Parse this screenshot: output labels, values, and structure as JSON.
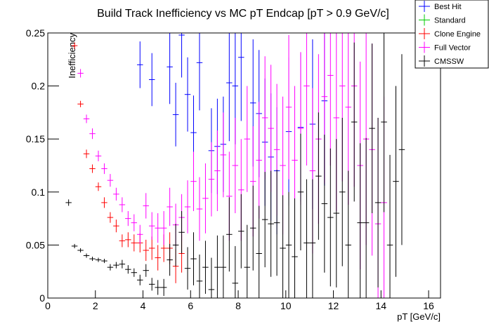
{
  "chart_data": {
    "type": "errorbar",
    "title": "Build Track Inefficiency vs MC pT Endcap [pT > 0.9 GeV/c]",
    "x_label": "pT [GeV/c]",
    "y_label": "Inefficiency",
    "xlim": [
      0,
      16.5
    ],
    "ylim": [
      0,
      0.25
    ],
    "xticks": [
      0,
      2,
      4,
      6,
      8,
      10,
      12,
      14,
      16
    ],
    "yticks": [
      0,
      0.05,
      0.1,
      0.15,
      0.2,
      0.25
    ],
    "legend": "top-right",
    "series": [
      {
        "name": "Best Hit",
        "color": "#0000ff",
        "x": [
          3.875,
          4.375,
          5.125,
          5.375,
          5.625,
          5.875,
          6.125,
          6.375,
          6.875,
          7.125,
          7.375,
          7.625,
          7.875,
          8.125,
          8.625,
          8.875,
          9.125,
          9.375,
          9.625,
          10.125,
          10.625,
          11.125,
          11.625
        ],
        "values": [
          0.22,
          0.206,
          0.218,
          0.173,
          0.248,
          0.192,
          0.156,
          0.222,
          0.139,
          0.143,
          0.145,
          0.203,
          0.2,
          0.227,
          0.184,
          0.174,
          0.147,
          0.133,
          0.12,
          0.157,
          0.161,
          0.164,
          0.186
        ],
        "errors": [
          0.022,
          0.025,
          0.035,
          0.03,
          0.04,
          0.035,
          0.035,
          0.045,
          0.04,
          0.045,
          0.045,
          0.055,
          0.055,
          0.06,
          0.06,
          0.06,
          0.06,
          0.06,
          0.06,
          0.07,
          0.07,
          0.08,
          0.08
        ]
      },
      {
        "name": "Standard",
        "color": "#00cc00",
        "x": [],
        "values": [],
        "errors": []
      },
      {
        "name": "Clone Engine",
        "color": "#ff0000",
        "x": [
          1.125,
          1.375,
          1.625,
          1.875,
          2.125,
          2.375,
          2.625,
          2.875,
          3.125,
          3.375,
          3.625,
          3.875,
          4.125,
          4.375,
          4.625,
          4.875,
          5.125,
          5.375,
          5.625
        ],
        "values": [
          0.238,
          0.183,
          0.136,
          0.122,
          0.105,
          0.09,
          0.076,
          0.068,
          0.054,
          0.055,
          0.052,
          0.052,
          0.045,
          0.047,
          0.038,
          0.047,
          0.047,
          0.03,
          0.042
        ],
        "errors": [
          0.003,
          0.003,
          0.004,
          0.004,
          0.004,
          0.005,
          0.005,
          0.006,
          0.006,
          0.007,
          0.008,
          0.009,
          0.01,
          0.011,
          0.012,
          0.013,
          0.015,
          0.016,
          0.018
        ]
      },
      {
        "name": "Full Vector",
        "color": "#ff00ff",
        "x": [
          1.375,
          1.625,
          1.875,
          2.125,
          2.375,
          2.625,
          2.875,
          3.125,
          3.375,
          3.625,
          3.875,
          4.125,
          4.375,
          4.625,
          4.875,
          5.125,
          5.375,
          5.625,
          5.875,
          6.125,
          6.375,
          6.625,
          6.875,
          7.125,
          7.375,
          7.625,
          7.875,
          8.125,
          8.375,
          8.625,
          8.875,
          9.125,
          9.375,
          9.625,
          9.875,
          10.125,
          10.375,
          10.625,
          10.875,
          11.125,
          11.375,
          11.625,
          11.875,
          12.125,
          12.375,
          12.625,
          12.875,
          13.125,
          13.375,
          13.625,
          13.875,
          14.125
        ],
        "values": [
          0.212,
          0.169,
          0.155,
          0.134,
          0.122,
          0.111,
          0.098,
          0.088,
          0.075,
          0.071,
          0.06,
          0.087,
          0.068,
          0.066,
          0.066,
          0.086,
          0.069,
          0.076,
          0.086,
          0.11,
          0.084,
          0.094,
          0.112,
          0.12,
          0.135,
          0.096,
          0.125,
          0.102,
          0.15,
          0.11,
          0.13,
          0.17,
          0.16,
          0.14,
          0.125,
          0.18,
          0.13,
          0.16,
          0.2,
          0.12,
          0.15,
          0.19,
          0.21,
          0.17,
          0.2,
          0.18,
          0.2,
          0.125,
          0.15,
          0.14,
          0.07,
          0.09
        ],
        "errors": [
          0.004,
          0.004,
          0.005,
          0.005,
          0.005,
          0.006,
          0.006,
          0.007,
          0.007,
          0.008,
          0.009,
          0.012,
          0.013,
          0.014,
          0.016,
          0.018,
          0.02,
          0.022,
          0.025,
          0.028,
          0.03,
          0.033,
          0.035,
          0.038,
          0.04,
          0.042,
          0.045,
          0.048,
          0.05,
          0.052,
          0.055,
          0.058,
          0.06,
          0.062,
          0.065,
          0.068,
          0.07,
          0.072,
          0.075,
          0.078,
          0.08,
          0.082,
          0.085,
          0.088,
          0.09,
          0.092,
          0.095,
          0.098,
          0.1,
          0.1,
          0.1,
          0.1
        ]
      },
      {
        "name": "CMSSW",
        "color": "#000000",
        "x": [
          0.875,
          1.125,
          1.375,
          1.625,
          1.875,
          2.125,
          2.375,
          2.625,
          2.875,
          3.125,
          3.375,
          3.625,
          3.875,
          4.125,
          4.375,
          4.625,
          4.875,
          5.125,
          5.375,
          5.625,
          5.875,
          6.125,
          6.375,
          6.625,
          6.875,
          7.125,
          7.375,
          7.625,
          7.875,
          8.125,
          8.375,
          8.625,
          8.875,
          9.125,
          9.375,
          9.625,
          9.875,
          10.125,
          10.375,
          10.625,
          10.875,
          11.125,
          11.375,
          11.625,
          11.875,
          12.125,
          12.375,
          12.625,
          12.875,
          13.125,
          13.375,
          13.625,
          13.875,
          14.125,
          14.375,
          14.625,
          14.875
        ],
        "values": [
          0.09,
          0.049,
          0.045,
          0.04,
          0.037,
          0.036,
          0.035,
          0.029,
          0.031,
          0.032,
          0.027,
          0.024,
          0.017,
          0.026,
          0.013,
          0.01,
          0.01,
          0.036,
          0.05,
          0.062,
          0.028,
          0.037,
          0.016,
          0.029,
          0.008,
          0.029,
          0.029,
          0.06,
          0.014,
          0.063,
          0.029,
          0.066,
          0.042,
          0.074,
          0.07,
          0.071,
          0.047,
          0.05,
          0.039,
          0.1,
          0.052,
          0.052,
          0.115,
          0.089,
          0.076,
          0.08,
          0.1,
          0.05,
          0.166,
          0.071,
          0.071,
          0.16,
          0.09,
          0.166,
          0.05,
          0.11,
          0.14
        ],
        "errors": [
          0.003,
          0.002,
          0.002,
          0.002,
          0.002,
          0.002,
          0.002,
          0.003,
          0.003,
          0.004,
          0.004,
          0.004,
          0.005,
          0.006,
          0.006,
          0.007,
          0.008,
          0.015,
          0.02,
          0.02,
          0.02,
          0.025,
          0.025,
          0.025,
          0.03,
          0.03,
          0.03,
          0.035,
          0.035,
          0.035,
          0.04,
          0.04,
          0.045,
          0.045,
          0.05,
          0.05,
          0.05,
          0.05,
          0.055,
          0.055,
          0.06,
          0.06,
          0.06,
          0.065,
          0.065,
          0.07,
          0.07,
          0.07,
          0.075,
          0.075,
          0.08,
          0.08,
          0.08,
          0.085,
          0.085,
          0.09,
          0.09
        ]
      }
    ]
  }
}
